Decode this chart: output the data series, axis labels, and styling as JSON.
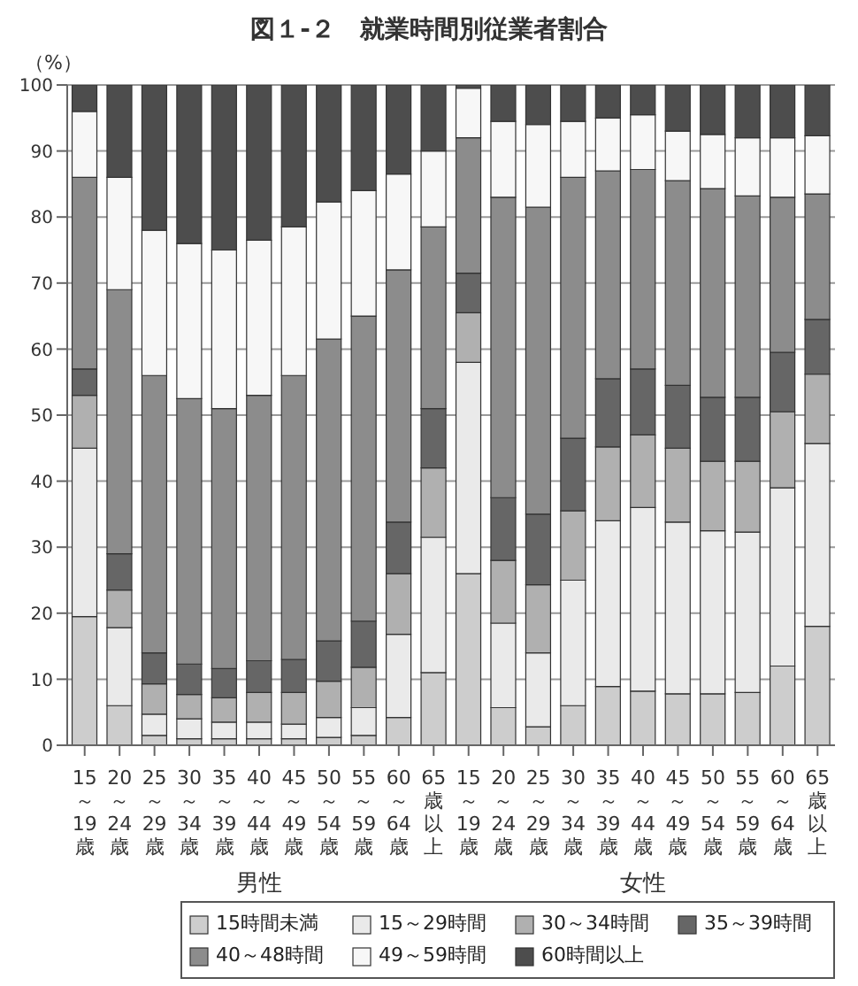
{
  "chart_data": {
    "type": "bar",
    "stacked": true,
    "title": "図１-２　就業時間別従業者割合",
    "ylabel": "（%）",
    "categories": [
      "15～19歳",
      "20～24歳",
      "25～29歳",
      "30～34歳",
      "35～39歳",
      "40～44歳",
      "45～49歳",
      "50～54歳",
      "55～59歳",
      "60～64歳",
      "65歳以上",
      "15～19歳",
      "20～24歳",
      "25～29歳",
      "30～34歳",
      "35～39歳",
      "40～44歳",
      "45～49歳",
      "50～54歳",
      "55～59歳",
      "60～64歳",
      "65歳以上"
    ],
    "annotations": [
      "男性",
      "女性"
    ],
    "ylim": [
      0,
      100
    ],
    "yticks": [
      0,
      10,
      20,
      30,
      40,
      50,
      60,
      70,
      80,
      90,
      100
    ],
    "grid": "y",
    "legend": "bottom right",
    "series": [
      {
        "name": "15時間未満",
        "color": "#cdcdcd",
        "values": [
          19.5,
          6,
          1.5,
          1,
          1,
          1,
          1,
          1.2,
          1.5,
          4.2,
          11,
          26,
          5.7,
          2.8,
          6,
          8.9,
          8.2,
          7.8,
          7.8,
          8,
          12,
          18
        ]
      },
      {
        "name": "15～29時間",
        "color": "#eaeaea",
        "values": [
          25.5,
          11.8,
          3.2,
          3,
          2.5,
          2.5,
          2.2,
          3,
          4.2,
          12.6,
          20.5,
          32,
          12.8,
          11.2,
          19,
          25.1,
          27.8,
          26,
          24.7,
          24.3,
          27,
          27.7
        ]
      },
      {
        "name": "30～34時間",
        "color": "#b0b0b0",
        "values": [
          8,
          5.7,
          4.6,
          3.7,
          3.7,
          4.5,
          4.8,
          5.5,
          6.1,
          9.2,
          10.5,
          7.5,
          9.5,
          10.3,
          10.5,
          11.2,
          11,
          11.2,
          10.5,
          10.7,
          11.5,
          10.5
        ]
      },
      {
        "name": "35～39時間",
        "color": "#666666",
        "values": [
          4,
          5.5,
          4.7,
          4.6,
          4.4,
          4.8,
          5,
          6.1,
          7,
          7.8,
          9,
          6,
          9.5,
          10.7,
          11,
          10.3,
          10,
          9.5,
          9.7,
          9.7,
          9,
          8.3
        ]
      },
      {
        "name": "40～48時間",
        "color": "#8c8c8c",
        "values": [
          29,
          40,
          42,
          40.2,
          39.4,
          40.2,
          43,
          45.7,
          46.2,
          38.2,
          27.5,
          20.5,
          45.5,
          46.5,
          39.5,
          31.5,
          30.2,
          31,
          31.6,
          30.5,
          23.5,
          19
        ]
      },
      {
        "name": "49～59時間",
        "color": "#f7f7f7",
        "values": [
          10,
          17,
          22,
          23.5,
          24,
          23.5,
          22.5,
          20.8,
          19,
          14.5,
          11.5,
          7.5,
          11.5,
          12.5,
          8.5,
          8,
          8.3,
          7.5,
          8.2,
          8.8,
          9,
          8.8
        ]
      },
      {
        "name": "60時間以上",
        "color": "#4d4d4d",
        "values": [
          4,
          14,
          22,
          24,
          25,
          23.5,
          21.5,
          17.7,
          16,
          13.5,
          10,
          0.5,
          5.5,
          6,
          5.5,
          5,
          4.5,
          7,
          7.5,
          8,
          8,
          7.7
        ]
      }
    ]
  }
}
